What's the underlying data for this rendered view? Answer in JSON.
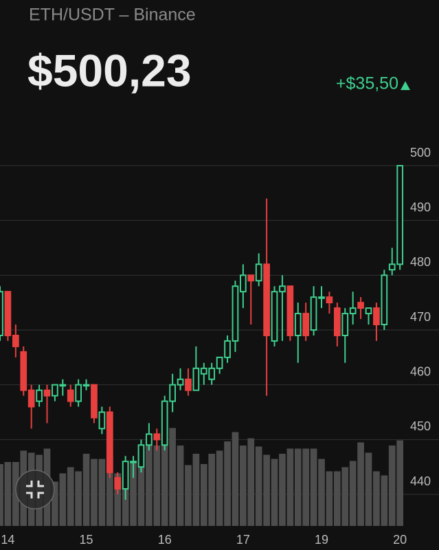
{
  "header": {
    "pair": "ETH/USDT – Binance",
    "price": "$500,23",
    "change": "+$35,50"
  },
  "chart_data": {
    "type": "candlestick",
    "open": [
      469,
      477,
      469,
      466,
      459,
      457,
      459,
      458,
      460,
      459,
      457,
      460,
      460,
      452,
      455,
      443,
      441,
      446,
      445,
      449,
      451,
      449,
      457,
      460,
      461,
      459,
      462,
      461,
      463,
      465,
      468,
      477,
      480,
      479,
      482,
      468,
      477,
      478,
      469,
      473,
      470,
      476,
      476,
      474,
      469,
      473,
      475,
      473,
      474,
      471,
      481,
      482
    ],
    "high": [
      478,
      477,
      471,
      467,
      460,
      460,
      460,
      460,
      461,
      460,
      461,
      461,
      460,
      456,
      456,
      444,
      447,
      447,
      450,
      453,
      452,
      458,
      462,
      463,
      463,
      467,
      464,
      464,
      465,
      469,
      479,
      482,
      480,
      484,
      494,
      478,
      480,
      478,
      475,
      475,
      478,
      478,
      477,
      475,
      474,
      477,
      476,
      474,
      475,
      481,
      485,
      500
    ],
    "low": [
      468,
      468,
      465,
      458,
      452,
      456,
      453,
      457,
      458,
      456,
      456,
      459,
      453,
      451,
      443,
      440,
      439,
      443,
      444,
      448,
      448,
      448,
      455,
      459,
      458,
      459,
      460,
      460,
      462,
      464,
      466,
      474,
      471,
      478,
      458,
      467,
      468,
      468,
      464,
      468,
      469,
      474,
      473,
      467,
      464,
      471,
      472,
      471,
      468,
      470,
      480,
      481
    ],
    "close": [
      477,
      469,
      467,
      459,
      456,
      459,
      458,
      460,
      460,
      457,
      460,
      460,
      454,
      455,
      444,
      441,
      446,
      446,
      449,
      451,
      450,
      457,
      460,
      461,
      459,
      463,
      463,
      463,
      465,
      468,
      478,
      480,
      479,
      482,
      469,
      477,
      478,
      469,
      473,
      469,
      476,
      476,
      475,
      469,
      473,
      474,
      474,
      474,
      471,
      480,
      482,
      500
    ],
    "volume": [
      60,
      62,
      62,
      73,
      71,
      69,
      75,
      43,
      51,
      57,
      53,
      70,
      65,
      65,
      67,
      51,
      43,
      62,
      73,
      83,
      78,
      78,
      95,
      78,
      59,
      70,
      60,
      70,
      73,
      82,
      91,
      78,
      85,
      77,
      69,
      65,
      70,
      75,
      75,
      75,
      75,
      65,
      53,
      53,
      57,
      63,
      81,
      71,
      53,
      49,
      78,
      83
    ],
    "up_color": "#3fcf8e",
    "down_color": "#e8403f",
    "volume_color": "#4d4d4d",
    "xlim": [
      0,
      51.6
    ],
    "xticks": [
      {
        "value": 1,
        "label": "14"
      },
      {
        "value": 11,
        "label": "15"
      },
      {
        "value": 21,
        "label": "16"
      },
      {
        "value": 31,
        "label": "17"
      },
      {
        "value": 41,
        "label": "19"
      },
      {
        "value": 51,
        "label": "20"
      }
    ],
    "ylim": [
      440,
      500
    ],
    "yticks": [
      440,
      450,
      460,
      470,
      480,
      490,
      500
    ],
    "volume_ylim": [
      0,
      100
    ],
    "grid": true
  }
}
